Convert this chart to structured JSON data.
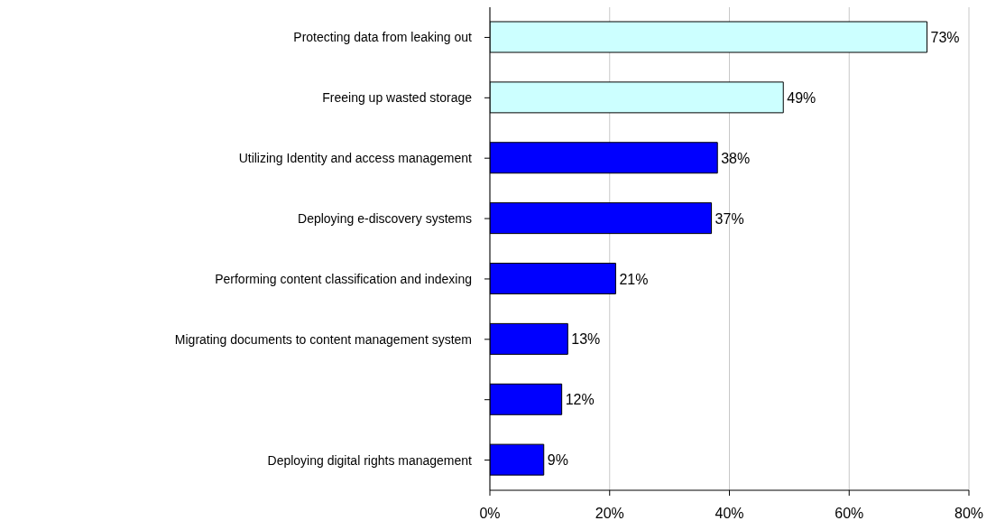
{
  "chart_data": {
    "type": "bar",
    "orientation": "horizontal",
    "categories": [
      "Protecting data from leaking out",
      "Freeing up wasted storage",
      "Utilizing Identity and access management",
      "Deploying e-discovery systems",
      "Performing content classification and indexing",
      "Migrating documents to content management system",
      null,
      "Deploying digital rights management"
    ],
    "values": [
      73,
      49,
      38,
      37,
      21,
      13,
      12,
      9
    ],
    "colors": [
      "#ccffff",
      "#ccffff",
      "#0000ff",
      "#0000ff",
      "#0000ff",
      "#0000ff",
      "#0000ff",
      "#0000ff"
    ],
    "value_labels": [
      "73%",
      "49%",
      "38%",
      "37%",
      "21%",
      "13%",
      "12%",
      "9%"
    ],
    "xlim": [
      0,
      80
    ],
    "xticks": [
      {
        "value": 0,
        "label": "0%"
      },
      {
        "value": 20,
        "label": "20%"
      },
      {
        "value": 40,
        "label": "40%"
      },
      {
        "value": 60,
        "label": "60%"
      },
      {
        "value": 80,
        "label": "80%"
      }
    ],
    "grid": "x",
    "legend": false
  }
}
